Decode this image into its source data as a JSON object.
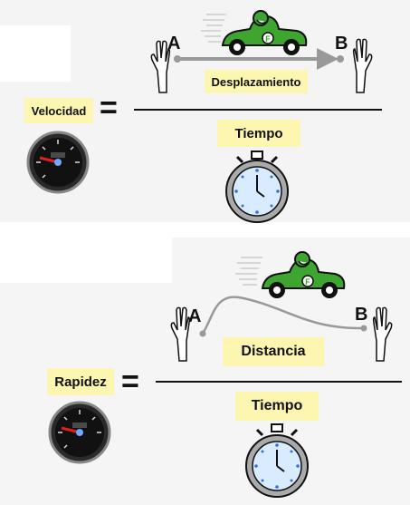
{
  "velocity": {
    "label": "Velocidad",
    "numerator": "Desplazamiento",
    "denominator": "Tiempo",
    "point_a": "A",
    "point_b": "B"
  },
  "speed": {
    "label": "Rapidez",
    "numerator": "Distancia",
    "denominator": "Tiempo",
    "point_a": "A",
    "point_b": "B"
  },
  "colors": {
    "label_background": "#fdf6b0",
    "car_green": "#3fa531",
    "arrow_gray": "#999999",
    "stopwatch_face": "#d9ecff"
  },
  "icons": [
    "speedometer-icon",
    "stopwatch-icon",
    "race-car-icon",
    "hand-icon"
  ]
}
